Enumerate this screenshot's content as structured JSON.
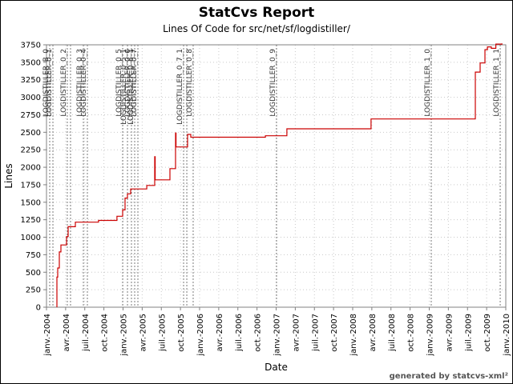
{
  "footer": {
    "credit": "generated by statcvs-xml²"
  },
  "chart_data": {
    "type": "line",
    "title": "StatCvs Report",
    "subtitle": "Lines Of Code for src/net/sf/logdistiller/",
    "xlabel": "Date",
    "ylabel": "Lines",
    "grid": "dotted",
    "legend_position": "none",
    "line_color": "#cc0000",
    "grid_color": "#c9c9c9",
    "tag_line_color": "#7a7a7a",
    "axis_color": "#808080",
    "xlim": [
      2004.0,
      2010.0
    ],
    "ylim": [
      0,
      3750
    ],
    "y_ticks": [
      0,
      250,
      500,
      750,
      1000,
      1250,
      1500,
      1750,
      2000,
      2250,
      2500,
      2750,
      3000,
      3250,
      3500,
      3750
    ],
    "x_ticks": [
      {
        "x": 2004.0,
        "label": "janv.-2004"
      },
      {
        "x": 2004.25,
        "label": "avr.-2004"
      },
      {
        "x": 2004.5,
        "label": "juil.-2004"
      },
      {
        "x": 2004.75,
        "label": "oct.-2004"
      },
      {
        "x": 2005.0,
        "label": "janv.-2005"
      },
      {
        "x": 2005.25,
        "label": "avr.-2005"
      },
      {
        "x": 2005.5,
        "label": "juil.-2005"
      },
      {
        "x": 2005.75,
        "label": "oct.-2005"
      },
      {
        "x": 2006.0,
        "label": "janv.-2006"
      },
      {
        "x": 2006.25,
        "label": "avr.-2006"
      },
      {
        "x": 2006.5,
        "label": "juil.-2006"
      },
      {
        "x": 2006.75,
        "label": "oct.-2006"
      },
      {
        "x": 2007.0,
        "label": "janv.-2007"
      },
      {
        "x": 2007.25,
        "label": "avr.-2007"
      },
      {
        "x": 2007.5,
        "label": "juil.-2007"
      },
      {
        "x": 2007.75,
        "label": "oct.-2007"
      },
      {
        "x": 2008.0,
        "label": "janv.-2008"
      },
      {
        "x": 2008.25,
        "label": "avr.-2008"
      },
      {
        "x": 2008.5,
        "label": "juil.-2008"
      },
      {
        "x": 2008.75,
        "label": "oct.-2008"
      },
      {
        "x": 2009.0,
        "label": "janv.-2009"
      },
      {
        "x": 2009.25,
        "label": "avr.-2009"
      },
      {
        "x": 2009.5,
        "label": "juil.-2009"
      },
      {
        "x": 2009.75,
        "label": "oct.-2009"
      },
      {
        "x": 2010.0,
        "label": "janv.-2010"
      }
    ],
    "tags": [
      {
        "x": 2004.042,
        "label": "LOGDISTILLER_B_0"
      },
      {
        "x": 2004.084,
        "label": "LOGDISTILLER_0_1"
      },
      {
        "x": 2004.272,
        "label": "LOGDISTILLER_0_2"
      },
      {
        "x": 2004.314,
        "label": ""
      },
      {
        "x": 2004.482,
        "label": "LOGDISTILLER_0_3"
      },
      {
        "x": 2004.534,
        "label": "LOGDISTILLER_0_4"
      },
      {
        "x": 2004.995,
        "label": "LOGDISTILLER_0_5"
      },
      {
        "x": 2005.058,
        "label": "LOGDISTILLER_0_5_1"
      },
      {
        "x": 2005.11,
        "label": "LOGDISTILLER_0_6"
      },
      {
        "x": 2005.152,
        "label": "LOGDISTILLER_0_6_1"
      },
      {
        "x": 2005.194,
        "label": "LOGDISTILLER_0_7"
      },
      {
        "x": 2005.791,
        "label": "LOGDISTILLER_0_7_1"
      },
      {
        "x": 2005.833,
        "label": ""
      },
      {
        "x": 2005.916,
        "label": "LOGDISTILLER_0_8"
      },
      {
        "x": 2007.005,
        "label": "LOGDISTILLER_0_9"
      },
      {
        "x": 2009.026,
        "label": "LOGDISTILLER_1_0"
      },
      {
        "x": 2009.927,
        "label": "LOGDISTILLER_1_1"
      }
    ],
    "series": [
      {
        "name": "Lines Of Code",
        "step": true,
        "points": [
          [
            2004.136,
            0
          ],
          [
            2004.136,
            430
          ],
          [
            2004.147,
            560
          ],
          [
            2004.168,
            790
          ],
          [
            2004.188,
            890
          ],
          [
            2004.262,
            1010
          ],
          [
            2004.283,
            1150
          ],
          [
            2004.377,
            1215
          ],
          [
            2004.68,
            1240
          ],
          [
            2004.92,
            1300
          ],
          [
            2004.995,
            1390
          ],
          [
            2005.026,
            1560
          ],
          [
            2005.058,
            1620
          ],
          [
            2005.1,
            1690
          ],
          [
            2005.31,
            1740
          ],
          [
            2005.414,
            2150
          ],
          [
            2005.42,
            1820
          ],
          [
            2005.613,
            1980
          ],
          [
            2005.686,
            2490
          ],
          [
            2005.692,
            2290
          ],
          [
            2005.843,
            2470
          ],
          [
            2005.885,
            2430
          ],
          [
            2006.86,
            2450
          ],
          [
            2007.14,
            2550
          ],
          [
            2008.24,
            2690
          ],
          [
            2009.602,
            3360
          ],
          [
            2009.665,
            3490
          ],
          [
            2009.728,
            3680
          ],
          [
            2009.76,
            3720
          ],
          [
            2009.81,
            3700
          ],
          [
            2009.87,
            3760
          ],
          [
            2009.95,
            3770
          ]
        ]
      }
    ]
  }
}
